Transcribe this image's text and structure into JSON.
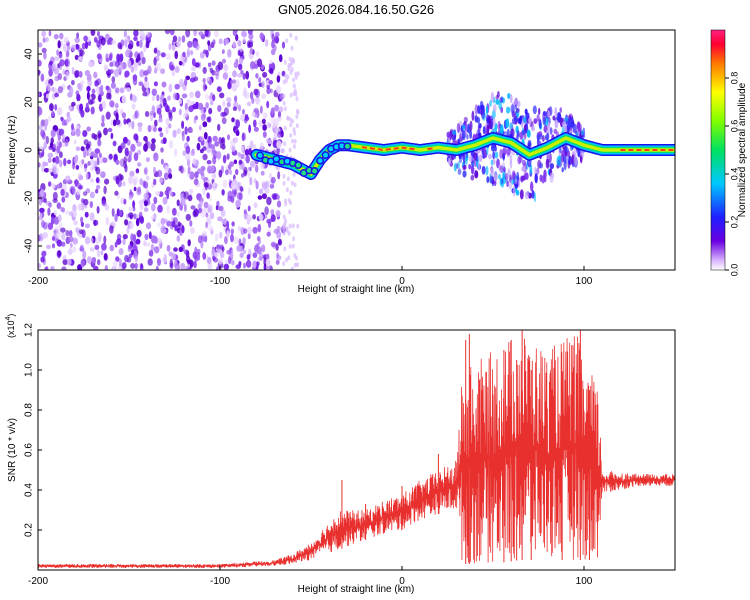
{
  "title": "GN05.2026.084.16.50.G26",
  "colors": {
    "line": "#e8302e",
    "axis": "#000000",
    "background": "#ffffff"
  },
  "chart_data": [
    {
      "type": "heatmap",
      "name": "spectrogram",
      "xlabel": "Height of straight line (km)",
      "ylabel": "Frequency (Hz)",
      "xlim": [
        -200,
        150
      ],
      "ylim": [
        -50,
        50
      ],
      "xticks": [
        -200,
        -100,
        0,
        100
      ],
      "yticks": [
        -40,
        -20,
        0,
        20,
        40
      ],
      "colorbar": {
        "label": "Normalized spectral amplitude",
        "range": [
          0,
          1
        ],
        "ticks": [
          "0.0",
          "0.2",
          "0.4",
          "0.6",
          "0.8"
        ],
        "tick_values": [
          0.0,
          0.2,
          0.4,
          0.6,
          0.8
        ]
      },
      "noise_region_x": [
        -200,
        -65
      ],
      "signal_track": [
        {
          "x": -80,
          "y": -2
        },
        {
          "x": -70,
          "y": -4
        },
        {
          "x": -60,
          "y": -6
        },
        {
          "x": -55,
          "y": -8
        },
        {
          "x": -50,
          "y": -10
        },
        {
          "x": -45,
          "y": -4
        },
        {
          "x": -40,
          "y": 0
        },
        {
          "x": -35,
          "y": 2
        },
        {
          "x": -30,
          "y": 2
        },
        {
          "x": -20,
          "y": 1
        },
        {
          "x": -10,
          "y": 0
        },
        {
          "x": 0,
          "y": 1
        },
        {
          "x": 10,
          "y": 0
        },
        {
          "x": 20,
          "y": 1
        },
        {
          "x": 30,
          "y": 0
        },
        {
          "x": 40,
          "y": 2
        },
        {
          "x": 50,
          "y": 5
        },
        {
          "x": 60,
          "y": 3
        },
        {
          "x": 70,
          "y": -2
        },
        {
          "x": 80,
          "y": 1
        },
        {
          "x": 90,
          "y": 5
        },
        {
          "x": 100,
          "y": 2
        },
        {
          "x": 110,
          "y": 0
        },
        {
          "x": 150,
          "y": 0
        }
      ],
      "scatter_region_x": [
        25,
        100
      ]
    },
    {
      "type": "line",
      "name": "snr",
      "xlabel": "Height of straight line (km)",
      "ylabel": "SNR (10 * v/v)",
      "scale_label_base": "(x10",
      "scale_label_exp": "4",
      "scale_label_close": ")",
      "xlim": [
        -200,
        150
      ],
      "ylim": [
        0,
        1.2
      ],
      "xticks": [
        -200,
        -100,
        0,
        100
      ],
      "yticks": [
        "0.2",
        "0.4",
        "0.6",
        "0.8",
        "1.0",
        "1.2"
      ],
      "ytick_values": [
        0.2,
        0.4,
        0.6,
        0.8,
        1.0,
        1.2
      ],
      "envelope": [
        {
          "x": -200,
          "lo": 0.01,
          "hi": 0.03
        },
        {
          "x": -100,
          "lo": 0.01,
          "hi": 0.03
        },
        {
          "x": -70,
          "lo": 0.02,
          "hi": 0.05
        },
        {
          "x": -60,
          "lo": 0.03,
          "hi": 0.08
        },
        {
          "x": -50,
          "lo": 0.05,
          "hi": 0.14
        },
        {
          "x": -35,
          "lo": 0.1,
          "hi": 0.3
        },
        {
          "x": -20,
          "lo": 0.15,
          "hi": 0.3
        },
        {
          "x": -10,
          "lo": 0.18,
          "hi": 0.35
        },
        {
          "x": 0,
          "lo": 0.2,
          "hi": 0.38
        },
        {
          "x": 10,
          "lo": 0.25,
          "hi": 0.45
        },
        {
          "x": 20,
          "lo": 0.28,
          "hi": 0.5
        },
        {
          "x": 30,
          "lo": 0.3,
          "hi": 0.55
        },
        {
          "x": 33,
          "lo": 0.03,
          "hi": 1.0
        },
        {
          "x": 50,
          "lo": 0.03,
          "hi": 1.1
        },
        {
          "x": 65,
          "lo": 0.05,
          "hi": 1.2
        },
        {
          "x": 80,
          "lo": 0.05,
          "hi": 1.1
        },
        {
          "x": 95,
          "lo": 0.05,
          "hi": 1.2
        },
        {
          "x": 108,
          "lo": 0.05,
          "hi": 0.9
        },
        {
          "x": 110,
          "lo": 0.38,
          "hi": 0.5
        },
        {
          "x": 130,
          "lo": 0.42,
          "hi": 0.48
        },
        {
          "x": 150,
          "lo": 0.42,
          "hi": 0.48
        }
      ],
      "spikes": [
        {
          "x": -33,
          "y": 0.45
        },
        {
          "x": -20,
          "y": 0.33
        },
        {
          "x": 0,
          "y": 0.42
        },
        {
          "x": 20,
          "y": 0.58
        },
        {
          "x": 35,
          "y": 1.15
        },
        {
          "x": 37,
          "y": 1.18
        },
        {
          "x": 56,
          "y": 1.1
        },
        {
          "x": 60,
          "y": 1.15
        },
        {
          "x": 63,
          "y": 1.05
        },
        {
          "x": 66,
          "y": 1.2
        },
        {
          "x": 71,
          "y": 1.0
        },
        {
          "x": 98,
          "y": 1.2
        },
        {
          "x": 88,
          "y": 0.95
        },
        {
          "x": 103,
          "y": 0.9
        }
      ]
    }
  ]
}
